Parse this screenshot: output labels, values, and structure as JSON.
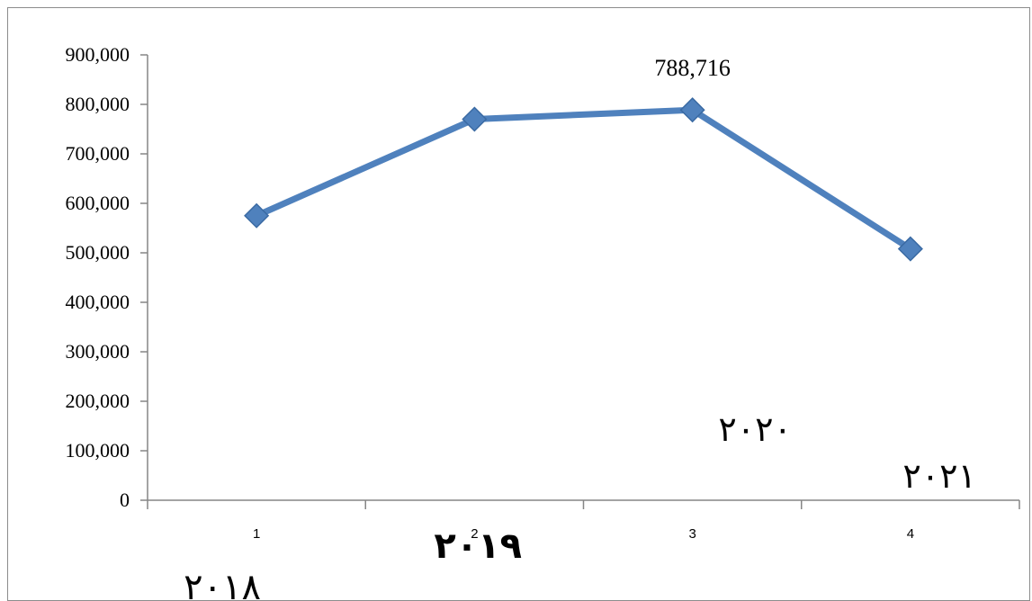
{
  "chart_data": {
    "type": "line",
    "categories": [
      "1",
      "2",
      "3",
      "4"
    ],
    "series": [
      {
        "values": [
          575000,
          770000,
          788716,
          508000
        ],
        "color": "#4f81bd",
        "marker": "diamond"
      }
    ],
    "data_labels": [
      {
        "index": 2,
        "text": "788,716"
      }
    ],
    "ylim": [
      0,
      900000
    ],
    "yticks": [
      "0",
      "100,000",
      "200,000",
      "300,000",
      "400,000",
      "500,000",
      "600,000",
      "700,000",
      "800,000",
      "900,000"
    ],
    "grid": false,
    "title": "",
    "xlabel": "",
    "ylabel": ""
  },
  "annotations": {
    "year_2018": "٢٠١٨",
    "year_2019": "٢٠١٩",
    "year_2020": "٢٠٢٠",
    "year_2021": "٢٠٢١"
  }
}
